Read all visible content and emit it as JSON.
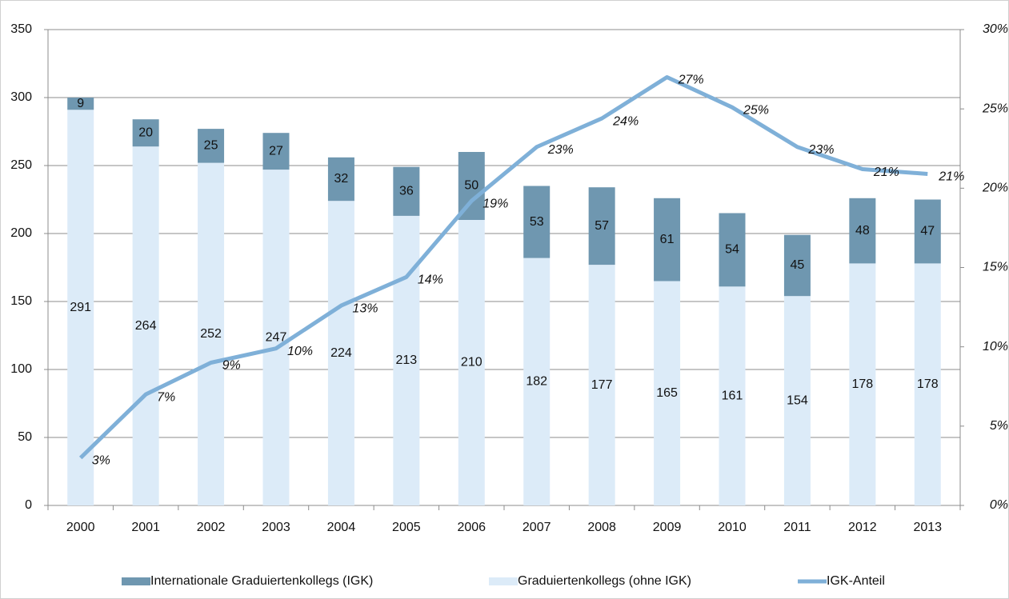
{
  "chart_data": {
    "type": "bar",
    "categories": [
      "2000",
      "2001",
      "2002",
      "2003",
      "2004",
      "2005",
      "2006",
      "2007",
      "2008",
      "2009",
      "2010",
      "2011",
      "2012",
      "2013"
    ],
    "series": [
      {
        "name": "Graduiertenkollegs (ohne IGK)",
        "color": "#dcebf8",
        "values": [
          291,
          264,
          252,
          247,
          224,
          213,
          210,
          182,
          177,
          165,
          161,
          154,
          178,
          178
        ]
      },
      {
        "name": "Internationale Graduiertenkollegs (IGK)",
        "color": "#6f97b0",
        "values": [
          9,
          20,
          25,
          27,
          32,
          36,
          50,
          53,
          57,
          61,
          54,
          45,
          48,
          47
        ]
      },
      {
        "name": "IGK-Anteil",
        "type": "line",
        "axis": "y2",
        "color": "#7fb0d8",
        "values": [
          3.0,
          7.0,
          9.0,
          9.9,
          12.6,
          14.4,
          19.2,
          22.6,
          24.4,
          27.0,
          25.1,
          22.6,
          21.2,
          20.9
        ],
        "value_labels": [
          "3%",
          "7%",
          "9%",
          "10%",
          "13%",
          "14%",
          "19%",
          "23%",
          "24%",
          "27%",
          "25%",
          "23%",
          "21%",
          "21%"
        ]
      }
    ],
    "stacked": true,
    "ylim": [
      0,
      350
    ],
    "yticks": [
      0,
      50,
      100,
      150,
      200,
      250,
      300,
      350
    ],
    "y2lim": [
      0,
      30
    ],
    "y2ticks": [
      {
        "value": 0,
        "label": "0%"
      },
      {
        "value": 5,
        "label": "5%"
      },
      {
        "value": 10,
        "label": "10%"
      },
      {
        "value": 15,
        "label": "15%"
      },
      {
        "value": 20,
        "label": "20%"
      },
      {
        "value": 25,
        "label": "25%"
      },
      {
        "value": 30,
        "label": "30%"
      }
    ],
    "grid": true,
    "legend": "bottom"
  }
}
